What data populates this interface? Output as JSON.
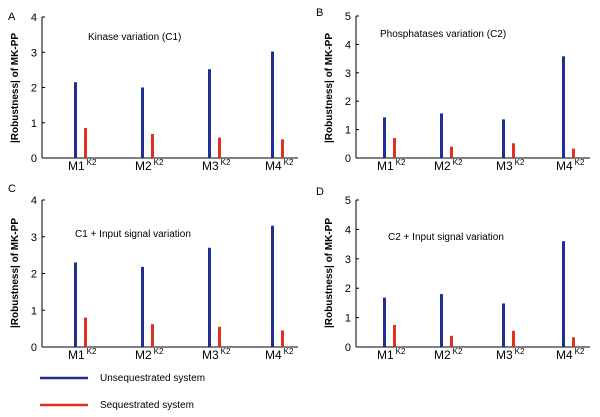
{
  "chart_data": [
    {
      "type": "bar",
      "panel_letter": "A",
      "title": "Kinase variation (C1)",
      "ylabel": "|Robustness| of MK-PP",
      "ylim": [
        0,
        4
      ],
      "yticks": [
        "0",
        "1",
        "2",
        "3",
        "4"
      ],
      "categories": [
        {
          "base": "M1",
          "sup": "K2"
        },
        {
          "base": "M2",
          "sup": "K2"
        },
        {
          "base": "M3",
          "sup": "K2"
        },
        {
          "base": "M4",
          "sup": "K2"
        }
      ],
      "series": [
        {
          "name": "Unsequestrated system",
          "color": "#1f2f8f",
          "values": [
            2.15,
            2.0,
            2.52,
            3.02
          ]
        },
        {
          "name": "Sequestrated system",
          "color": "#e0301e",
          "values": [
            0.85,
            0.68,
            0.58,
            0.53
          ]
        }
      ]
    },
    {
      "type": "bar",
      "panel_letter": "B",
      "title": "Phosphatases  variation (C2)",
      "ylabel": "|Robustness| of MK-PP",
      "ylim": [
        0,
        5
      ],
      "yticks": [
        "0",
        "1",
        "2",
        "3",
        "4",
        "5"
      ],
      "categories": [
        {
          "base": "M1",
          "sup": "K2"
        },
        {
          "base": "M2",
          "sup": "K2"
        },
        {
          "base": "M3",
          "sup": "K2"
        },
        {
          "base": "M4",
          "sup": "K2"
        }
      ],
      "series": [
        {
          "name": "Unsequestrated system",
          "color": "#1f2f8f",
          "values": [
            1.43,
            1.57,
            1.36,
            3.58
          ]
        },
        {
          "name": "Sequestrated system",
          "color": "#e0301e",
          "values": [
            0.7,
            0.4,
            0.52,
            0.33
          ]
        }
      ]
    },
    {
      "type": "bar",
      "panel_letter": "C",
      "title": "C1 + Input signal variation",
      "ylabel": "|Robustness| of MK-PP",
      "ylim": [
        0,
        4
      ],
      "yticks": [
        "0",
        "1",
        "2",
        "3",
        "4"
      ],
      "categories": [
        {
          "base": "M1",
          "sup": "K2"
        },
        {
          "base": "M2",
          "sup": "K2"
        },
        {
          "base": "M3",
          "sup": "K2"
        },
        {
          "base": "M4",
          "sup": "K2"
        }
      ],
      "series": [
        {
          "name": "Unsequestrated system",
          "color": "#1f2f8f",
          "values": [
            2.3,
            2.18,
            2.7,
            3.3
          ]
        },
        {
          "name": "Sequestrated system",
          "color": "#e0301e",
          "values": [
            0.8,
            0.62,
            0.55,
            0.45
          ]
        }
      ]
    },
    {
      "type": "bar",
      "panel_letter": "D",
      "title": "C2 + Input signal variation",
      "ylabel": "|Robustness| of MK-PP",
      "ylim": [
        0,
        5
      ],
      "yticks": [
        "0",
        "1",
        "2",
        "3",
        "4",
        "5"
      ],
      "categories": [
        {
          "base": "M1",
          "sup": "K2"
        },
        {
          "base": "M2",
          "sup": "K2"
        },
        {
          "base": "M3",
          "sup": "K2"
        },
        {
          "base": "M4",
          "sup": "K2"
        }
      ],
      "series": [
        {
          "name": "Unsequestrated system",
          "color": "#1f2f8f",
          "values": [
            1.68,
            1.8,
            1.48,
            3.6
          ]
        },
        {
          "name": "Sequestrated system",
          "color": "#e0301e",
          "values": [
            0.75,
            0.38,
            0.55,
            0.33
          ]
        }
      ]
    }
  ],
  "legend": [
    {
      "label": "Unsequestrated system",
      "color": "#1f2f8f"
    },
    {
      "label": "Sequestrated system",
      "color": "#e0301e"
    }
  ]
}
